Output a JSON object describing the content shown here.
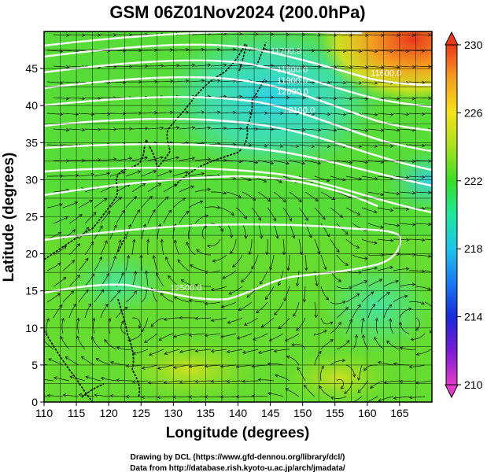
{
  "title": "GSM 06Z01Nov2024 (200.0hPa)",
  "chart_data": {
    "type": "heatmap",
    "title": "GSM 06Z01Nov2024 (200.0hPa)",
    "xlabel": "Longitude (degrees)",
    "ylabel": "Latitude  (degrees)",
    "xlim": [
      110,
      170
    ],
    "ylim": [
      0,
      50
    ],
    "x_ticks": [
      "110",
      "115",
      "120",
      "125",
      "130",
      "135",
      "140",
      "145",
      "150",
      "155",
      "160",
      "165"
    ],
    "y_ticks": [
      "0",
      "5",
      "10",
      "15",
      "20",
      "25",
      "30",
      "35",
      "40",
      "45"
    ],
    "grid": true,
    "colorbar": {
      "position": "right",
      "min": 210,
      "max": 230,
      "ticks": [
        "210",
        "214",
        "218",
        "222",
        "226",
        "230"
      ],
      "colors": [
        "#e23cc8",
        "#7a1cd2",
        "#1a2ad8",
        "#1c78f0",
        "#1ec4ea",
        "#1ee69c",
        "#3adc2a",
        "#a8e020",
        "#f4e21a",
        "#f3a020",
        "#ea3a1e"
      ]
    },
    "contour_labels": [
      {
        "text": "11600.0",
        "lon": 162,
        "lat": 44
      },
      {
        "text": "11700.0",
        "lon": 146.5,
        "lat": 47
      },
      {
        "text": "11800.0",
        "lon": 147.5,
        "lat": 44.5
      },
      {
        "text": "11900.0",
        "lon": 147.5,
        "lat": 43
      },
      {
        "text": "12000.0",
        "lon": 147.5,
        "lat": 41.5
      },
      {
        "text": "12100.0",
        "lon": 148.5,
        "lat": 39
      },
      {
        "text": "12500.0",
        "lon": 131,
        "lat": 15
      }
    ],
    "contour_heights": [
      11600,
      11700,
      11800,
      11900,
      12000,
      12100,
      12200,
      12300,
      12400,
      12500
    ]
  },
  "credits": {
    "line1": "Drawing by DCL (https://www.gfd-dennou.org/library/dcl/)",
    "line2": "Data from http://database.rish.kyoto-u.ac.jp/arch/jmadata/"
  }
}
